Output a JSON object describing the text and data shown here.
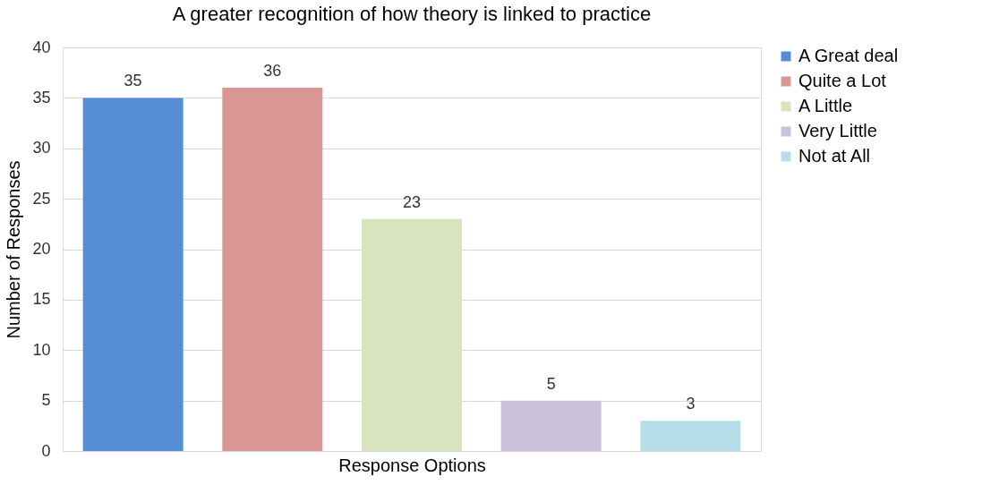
{
  "chart_data": {
    "type": "bar",
    "title": "A greater recognition of how theory is linked to practice",
    "xlabel": "Response Options",
    "ylabel": "Number of Responses",
    "categories": [
      null
    ],
    "series": [
      {
        "name": "A Great deal",
        "color": "#558ed5",
        "values": [
          35
        ]
      },
      {
        "name": "Quite a Lot",
        "color": "#d99694",
        "values": [
          36
        ]
      },
      {
        "name": "A Little",
        "color": "#d7e4bd",
        "values": [
          23
        ]
      },
      {
        "name": "Very Little",
        "color": "#ccc1da",
        "values": [
          5
        ]
      },
      {
        "name": "Not at All",
        "color": "#b7dee8",
        "values": [
          3
        ]
      }
    ],
    "ylim": [
      0,
      40
    ],
    "yticks": [
      0,
      5,
      10,
      15,
      20,
      25,
      30,
      35,
      40
    ],
    "grid": "y",
    "legend": "right",
    "data_labels": true
  }
}
